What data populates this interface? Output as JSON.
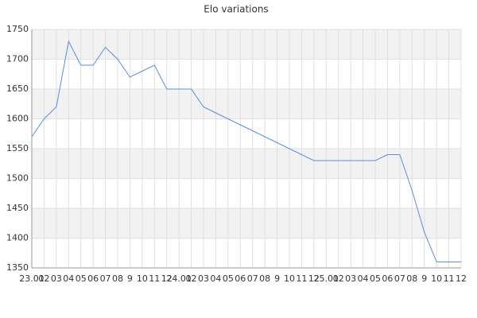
{
  "chart_data": {
    "type": "line",
    "title": "Elo variations",
    "categories": [
      "23.01",
      "02",
      "03",
      "04",
      "05",
      "06",
      "07",
      "08",
      "9",
      "10",
      "11",
      "12",
      "24.01",
      "02",
      "03",
      "04",
      "05",
      "06",
      "07",
      "08",
      "9",
      "10",
      "11",
      "12",
      "25.01",
      "02",
      "03",
      "04",
      "05",
      "06",
      "07",
      "08",
      "9",
      "10",
      "11",
      "12"
    ],
    "series": [
      {
        "name": "Elo",
        "color": "#5b8fd9",
        "values": [
          1570,
          1600,
          1620,
          1730,
          1690,
          1690,
          1720,
          1700,
          1670,
          1680,
          1690,
          1650,
          1650,
          1650,
          1620,
          1610,
          1600,
          1590,
          1580,
          1570,
          1560,
          1550,
          1540,
          1530,
          1530,
          1530,
          1530,
          1530,
          1530,
          1540,
          1540,
          1480,
          1410,
          1360,
          1360,
          1360
        ]
      }
    ],
    "ylim": [
      1350,
      1750
    ],
    "yticks": [
      1350,
      1400,
      1450,
      1500,
      1550,
      1600,
      1650,
      1700,
      1750
    ],
    "grid": true
  }
}
